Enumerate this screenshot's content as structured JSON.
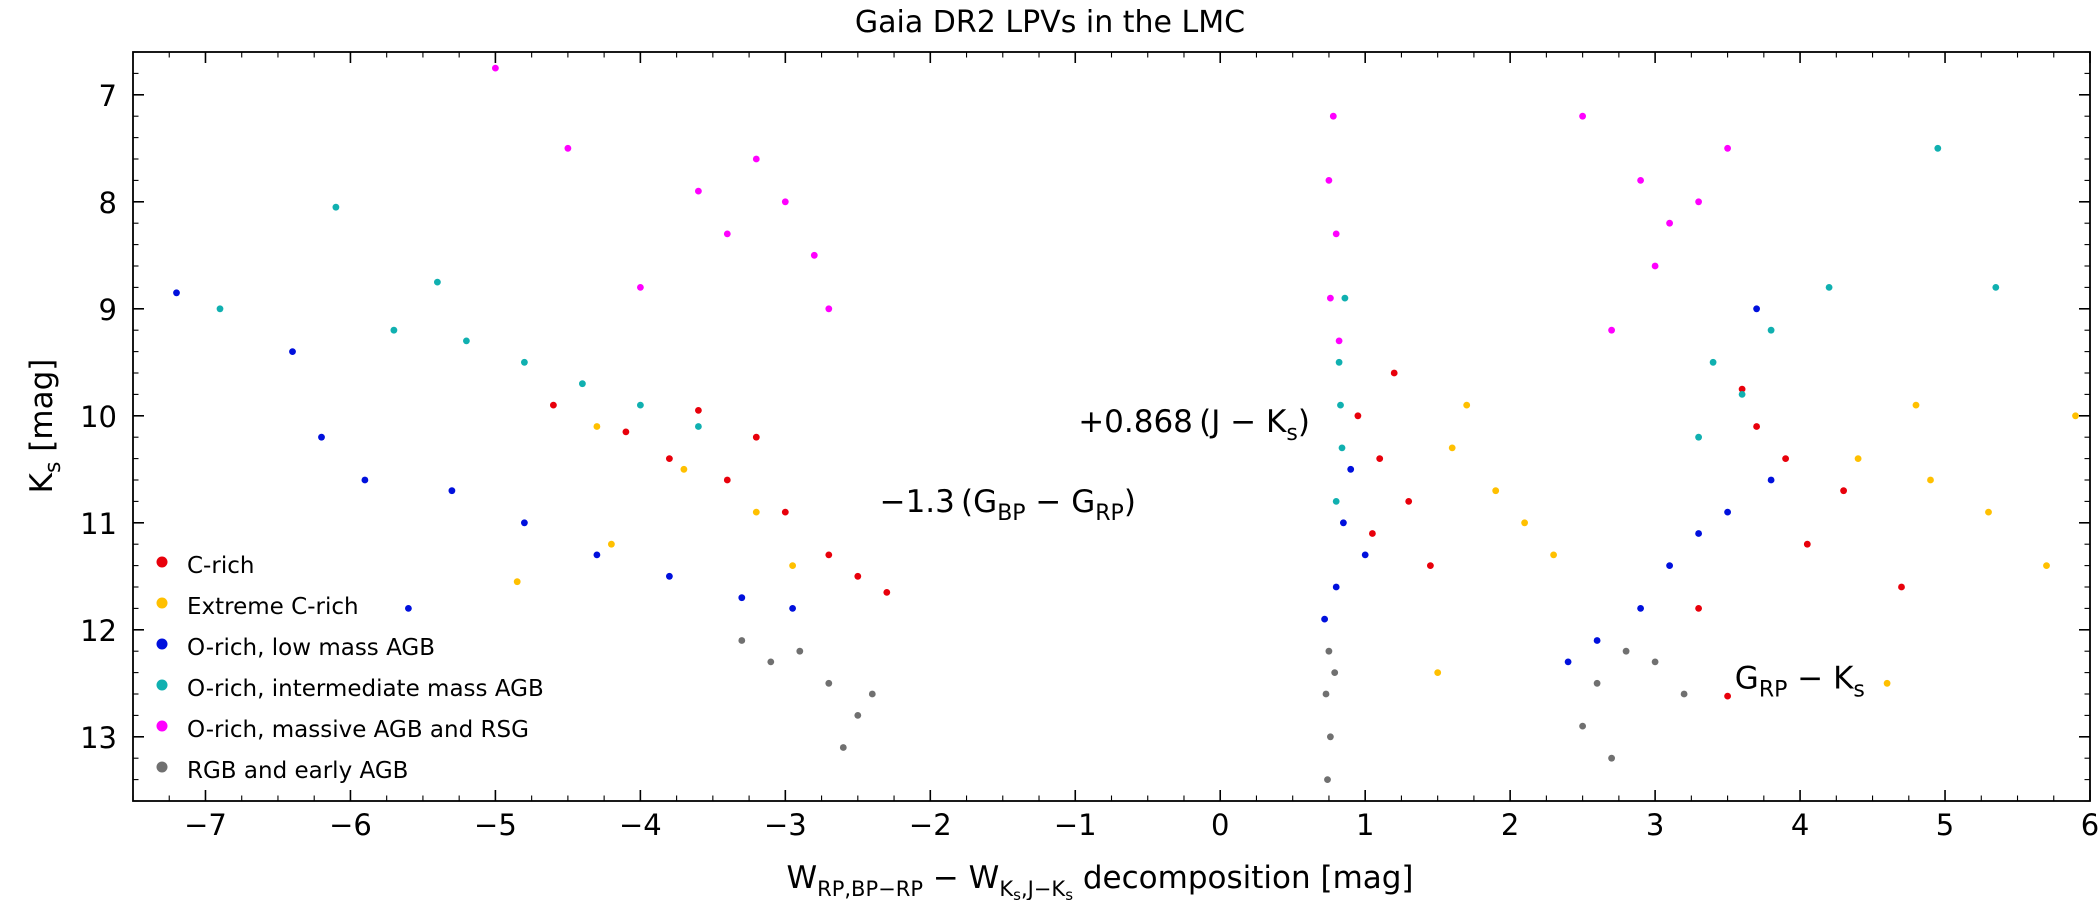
{
  "chart_data": {
    "type": "scatter",
    "title": "Gaia DR2 LPVs in the LMC",
    "xlabel": {
      "base": "W",
      "sub_a": "RP,BP−RP",
      "minus": " − W",
      "sub_b": "K",
      "sub_b2": "s",
      "sub_b3": ",J−K",
      "sub_b4": "s",
      "tail": " decomposition  [mag]"
    },
    "ylabel": {
      "base": "K",
      "sub": "s",
      "tail": "  [mag]"
    },
    "xlim": [
      -7.5,
      6
    ],
    "ylim": [
      13.6,
      6.6
    ],
    "y_inverted": true,
    "x_ticks": [
      -7,
      -6,
      -5,
      -4,
      -3,
      -2,
      -1,
      0,
      1,
      2,
      3,
      4,
      5,
      6
    ],
    "x_tick_labels": [
      "−7",
      "−6",
      "−5",
      "−4",
      "−3",
      "−2",
      "−1",
      "0",
      "1",
      "2",
      "3",
      "4",
      "5",
      "6"
    ],
    "y_ticks": [
      7,
      8,
      9,
      10,
      11,
      12,
      13
    ],
    "y_tick_labels": [
      "7",
      "8",
      "9",
      "10",
      "11",
      "12",
      "13"
    ],
    "grid": false,
    "legend_position": "bottom-left",
    "annotations": {
      "bp_rp": {
        "prefix": "−1.3 (G",
        "s1": "BP",
        "mid": " − G",
        "s2": "RP",
        "suffix": ")",
        "x": -2.35,
        "y": 10.9
      },
      "j_ks": {
        "prefix": "+0.868 (J − K",
        "s1": "s",
        "suffix": ")",
        "x": -0.98,
        "y": 10.15
      },
      "grp_ks": {
        "prefix": "G",
        "s1": "RP",
        "mid": " − K",
        "s2": "s",
        "x": 3.55,
        "y": 12.55
      }
    },
    "series": [
      {
        "name": "C-rich",
        "color": "#e8000b",
        "points": [
          [
            -4.1,
            10.15
          ],
          [
            -3.8,
            10.4
          ],
          [
            -3.4,
            10.6
          ],
          [
            -3.0,
            10.9
          ],
          [
            -2.7,
            11.3
          ],
          [
            -2.5,
            11.5
          ],
          [
            -2.3,
            11.65
          ],
          [
            -4.6,
            9.9
          ],
          [
            -3.6,
            9.95
          ],
          [
            -3.2,
            10.2
          ],
          [
            0.95,
            10.0
          ],
          [
            1.1,
            10.4
          ],
          [
            1.3,
            10.8
          ],
          [
            1.05,
            11.1
          ],
          [
            1.45,
            11.4
          ],
          [
            1.2,
            9.6
          ],
          [
            3.7,
            10.1
          ],
          [
            3.9,
            10.4
          ],
          [
            4.3,
            10.7
          ],
          [
            4.05,
            11.2
          ],
          [
            3.3,
            11.8
          ],
          [
            3.6,
            9.75
          ],
          [
            4.7,
            11.6
          ],
          [
            3.5,
            12.62
          ]
        ]
      },
      {
        "name": "Extreme C-rich",
        "color": "#ffc000",
        "points": [
          [
            -4.3,
            10.1
          ],
          [
            -3.7,
            10.5
          ],
          [
            -3.2,
            10.9
          ],
          [
            -2.95,
            11.4
          ],
          [
            -4.85,
            11.55
          ],
          [
            -4.2,
            11.2
          ],
          [
            1.6,
            10.3
          ],
          [
            1.9,
            10.7
          ],
          [
            2.1,
            11.0
          ],
          [
            1.7,
            9.9
          ],
          [
            2.3,
            11.3
          ],
          [
            1.5,
            12.4
          ],
          [
            4.4,
            10.4
          ],
          [
            4.9,
            10.6
          ],
          [
            5.3,
            10.9
          ],
          [
            5.9,
            10.0
          ],
          [
            5.7,
            11.4
          ],
          [
            4.8,
            9.9
          ],
          [
            4.6,
            12.5
          ]
        ]
      },
      {
        "name": "O-rich, low mass AGB",
        "color": "#0010dd",
        "points": [
          [
            -5.3,
            10.7
          ],
          [
            -4.8,
            11.0
          ],
          [
            -4.3,
            11.3
          ],
          [
            -3.8,
            11.5
          ],
          [
            -3.3,
            11.7
          ],
          [
            -2.95,
            11.8
          ],
          [
            -6.2,
            10.2
          ],
          [
            -5.9,
            10.6
          ],
          [
            -6.4,
            9.4
          ],
          [
            -7.2,
            8.85
          ],
          [
            -5.6,
            11.8
          ],
          [
            0.8,
            11.6
          ],
          [
            0.85,
            11.0
          ],
          [
            0.9,
            10.5
          ],
          [
            0.72,
            11.9
          ],
          [
            1.0,
            11.3
          ],
          [
            2.6,
            12.1
          ],
          [
            2.9,
            11.8
          ],
          [
            3.1,
            11.4
          ],
          [
            3.3,
            11.1
          ],
          [
            3.5,
            10.9
          ],
          [
            3.8,
            10.6
          ],
          [
            2.4,
            12.3
          ],
          [
            3.7,
            9.0
          ]
        ]
      },
      {
        "name": "O-rich, intermediate mass AGB",
        "color": "#10b0b0",
        "points": [
          [
            -5.7,
            9.2
          ],
          [
            -5.2,
            9.3
          ],
          [
            -4.8,
            9.5
          ],
          [
            -4.4,
            9.7
          ],
          [
            -4.0,
            9.9
          ],
          [
            -3.6,
            10.1
          ],
          [
            -6.9,
            9.0
          ],
          [
            -6.1,
            8.05
          ],
          [
            -5.4,
            8.75
          ],
          [
            0.82,
            9.5
          ],
          [
            0.84,
            10.3
          ],
          [
            0.8,
            10.8
          ],
          [
            0.86,
            8.9
          ],
          [
            0.83,
            9.9
          ],
          [
            3.4,
            9.5
          ],
          [
            3.6,
            9.8
          ],
          [
            3.3,
            10.2
          ],
          [
            3.8,
            9.2
          ],
          [
            4.2,
            8.8
          ],
          [
            5.35,
            8.8
          ],
          [
            4.95,
            7.5
          ]
        ]
      },
      {
        "name": "O-rich, massive AGB and RSG",
        "color": "#ff00ff",
        "points": [
          [
            -3.2,
            7.6
          ],
          [
            -3.0,
            8.0
          ],
          [
            -2.8,
            8.5
          ],
          [
            -3.4,
            8.3
          ],
          [
            -3.6,
            7.9
          ],
          [
            -2.7,
            9.0
          ],
          [
            -4.0,
            8.8
          ],
          [
            -5.0,
            6.75
          ],
          [
            -4.5,
            7.5
          ],
          [
            0.78,
            7.2
          ],
          [
            0.75,
            7.8
          ],
          [
            0.8,
            8.3
          ],
          [
            0.76,
            8.9
          ],
          [
            0.82,
            9.3
          ],
          [
            2.9,
            7.8
          ],
          [
            3.1,
            8.2
          ],
          [
            3.0,
            8.6
          ],
          [
            3.3,
            8.0
          ],
          [
            3.5,
            7.5
          ],
          [
            2.7,
            9.2
          ],
          [
            2.5,
            7.2
          ]
        ]
      },
      {
        "name": "RGB and early AGB",
        "color": "#707070",
        "points": [
          [
            -2.9,
            12.2
          ],
          [
            -2.7,
            12.5
          ],
          [
            -2.5,
            12.8
          ],
          [
            -3.1,
            12.3
          ],
          [
            -2.6,
            13.1
          ],
          [
            -2.4,
            12.6
          ],
          [
            -3.3,
            12.1
          ],
          [
            0.75,
            12.2
          ],
          [
            0.73,
            12.6
          ],
          [
            0.76,
            13.0
          ],
          [
            0.74,
            13.4
          ],
          [
            0.79,
            12.4
          ],
          [
            2.8,
            12.2
          ],
          [
            2.6,
            12.5
          ],
          [
            2.5,
            12.9
          ],
          [
            3.0,
            12.3
          ],
          [
            2.7,
            13.2
          ],
          [
            3.2,
            12.6
          ]
        ]
      }
    ]
  }
}
